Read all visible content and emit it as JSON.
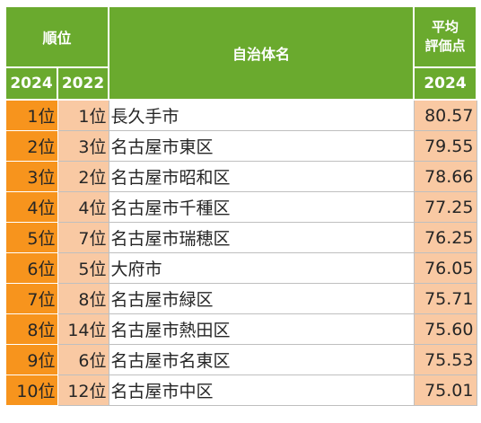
{
  "header": {
    "rank": "順位",
    "municipality": "自治体名",
    "score_line1": "平均",
    "score_line2": "評価点",
    "year_current": "2024",
    "year_previous": "2022",
    "score_year": "2024"
  },
  "rows": [
    {
      "rank_2024": "1位",
      "rank_2022": "1位",
      "name": "長久手市",
      "score": "80.57"
    },
    {
      "rank_2024": "2位",
      "rank_2022": "3位",
      "name": "名古屋市東区",
      "score": "79.55"
    },
    {
      "rank_2024": "3位",
      "rank_2022": "2位",
      "name": "名古屋市昭和区",
      "score": "78.66"
    },
    {
      "rank_2024": "4位",
      "rank_2022": "4位",
      "name": "名古屋市千種区",
      "score": "77.25"
    },
    {
      "rank_2024": "5位",
      "rank_2022": "7位",
      "name": "名古屋市瑞穂区",
      "score": "76.25"
    },
    {
      "rank_2024": "6位",
      "rank_2022": "5位",
      "name": "大府市",
      "score": "76.05"
    },
    {
      "rank_2024": "7位",
      "rank_2022": "8位",
      "name": "名古屋市緑区",
      "score": "75.71"
    },
    {
      "rank_2024": "8位",
      "rank_2022": "14位",
      "name": "名古屋市熱田区",
      "score": "75.60"
    },
    {
      "rank_2024": "9位",
      "rank_2022": "6位",
      "name": "名古屋市名東区",
      "score": "75.53"
    },
    {
      "rank_2024": "10位",
      "rank_2022": "12位",
      "name": "名古屋市中区",
      "score": "75.01"
    }
  ],
  "colors": {
    "header_green": "#6aaa2e",
    "rank_orange": "#f7941d",
    "cell_peach": "#f9c9a3"
  }
}
